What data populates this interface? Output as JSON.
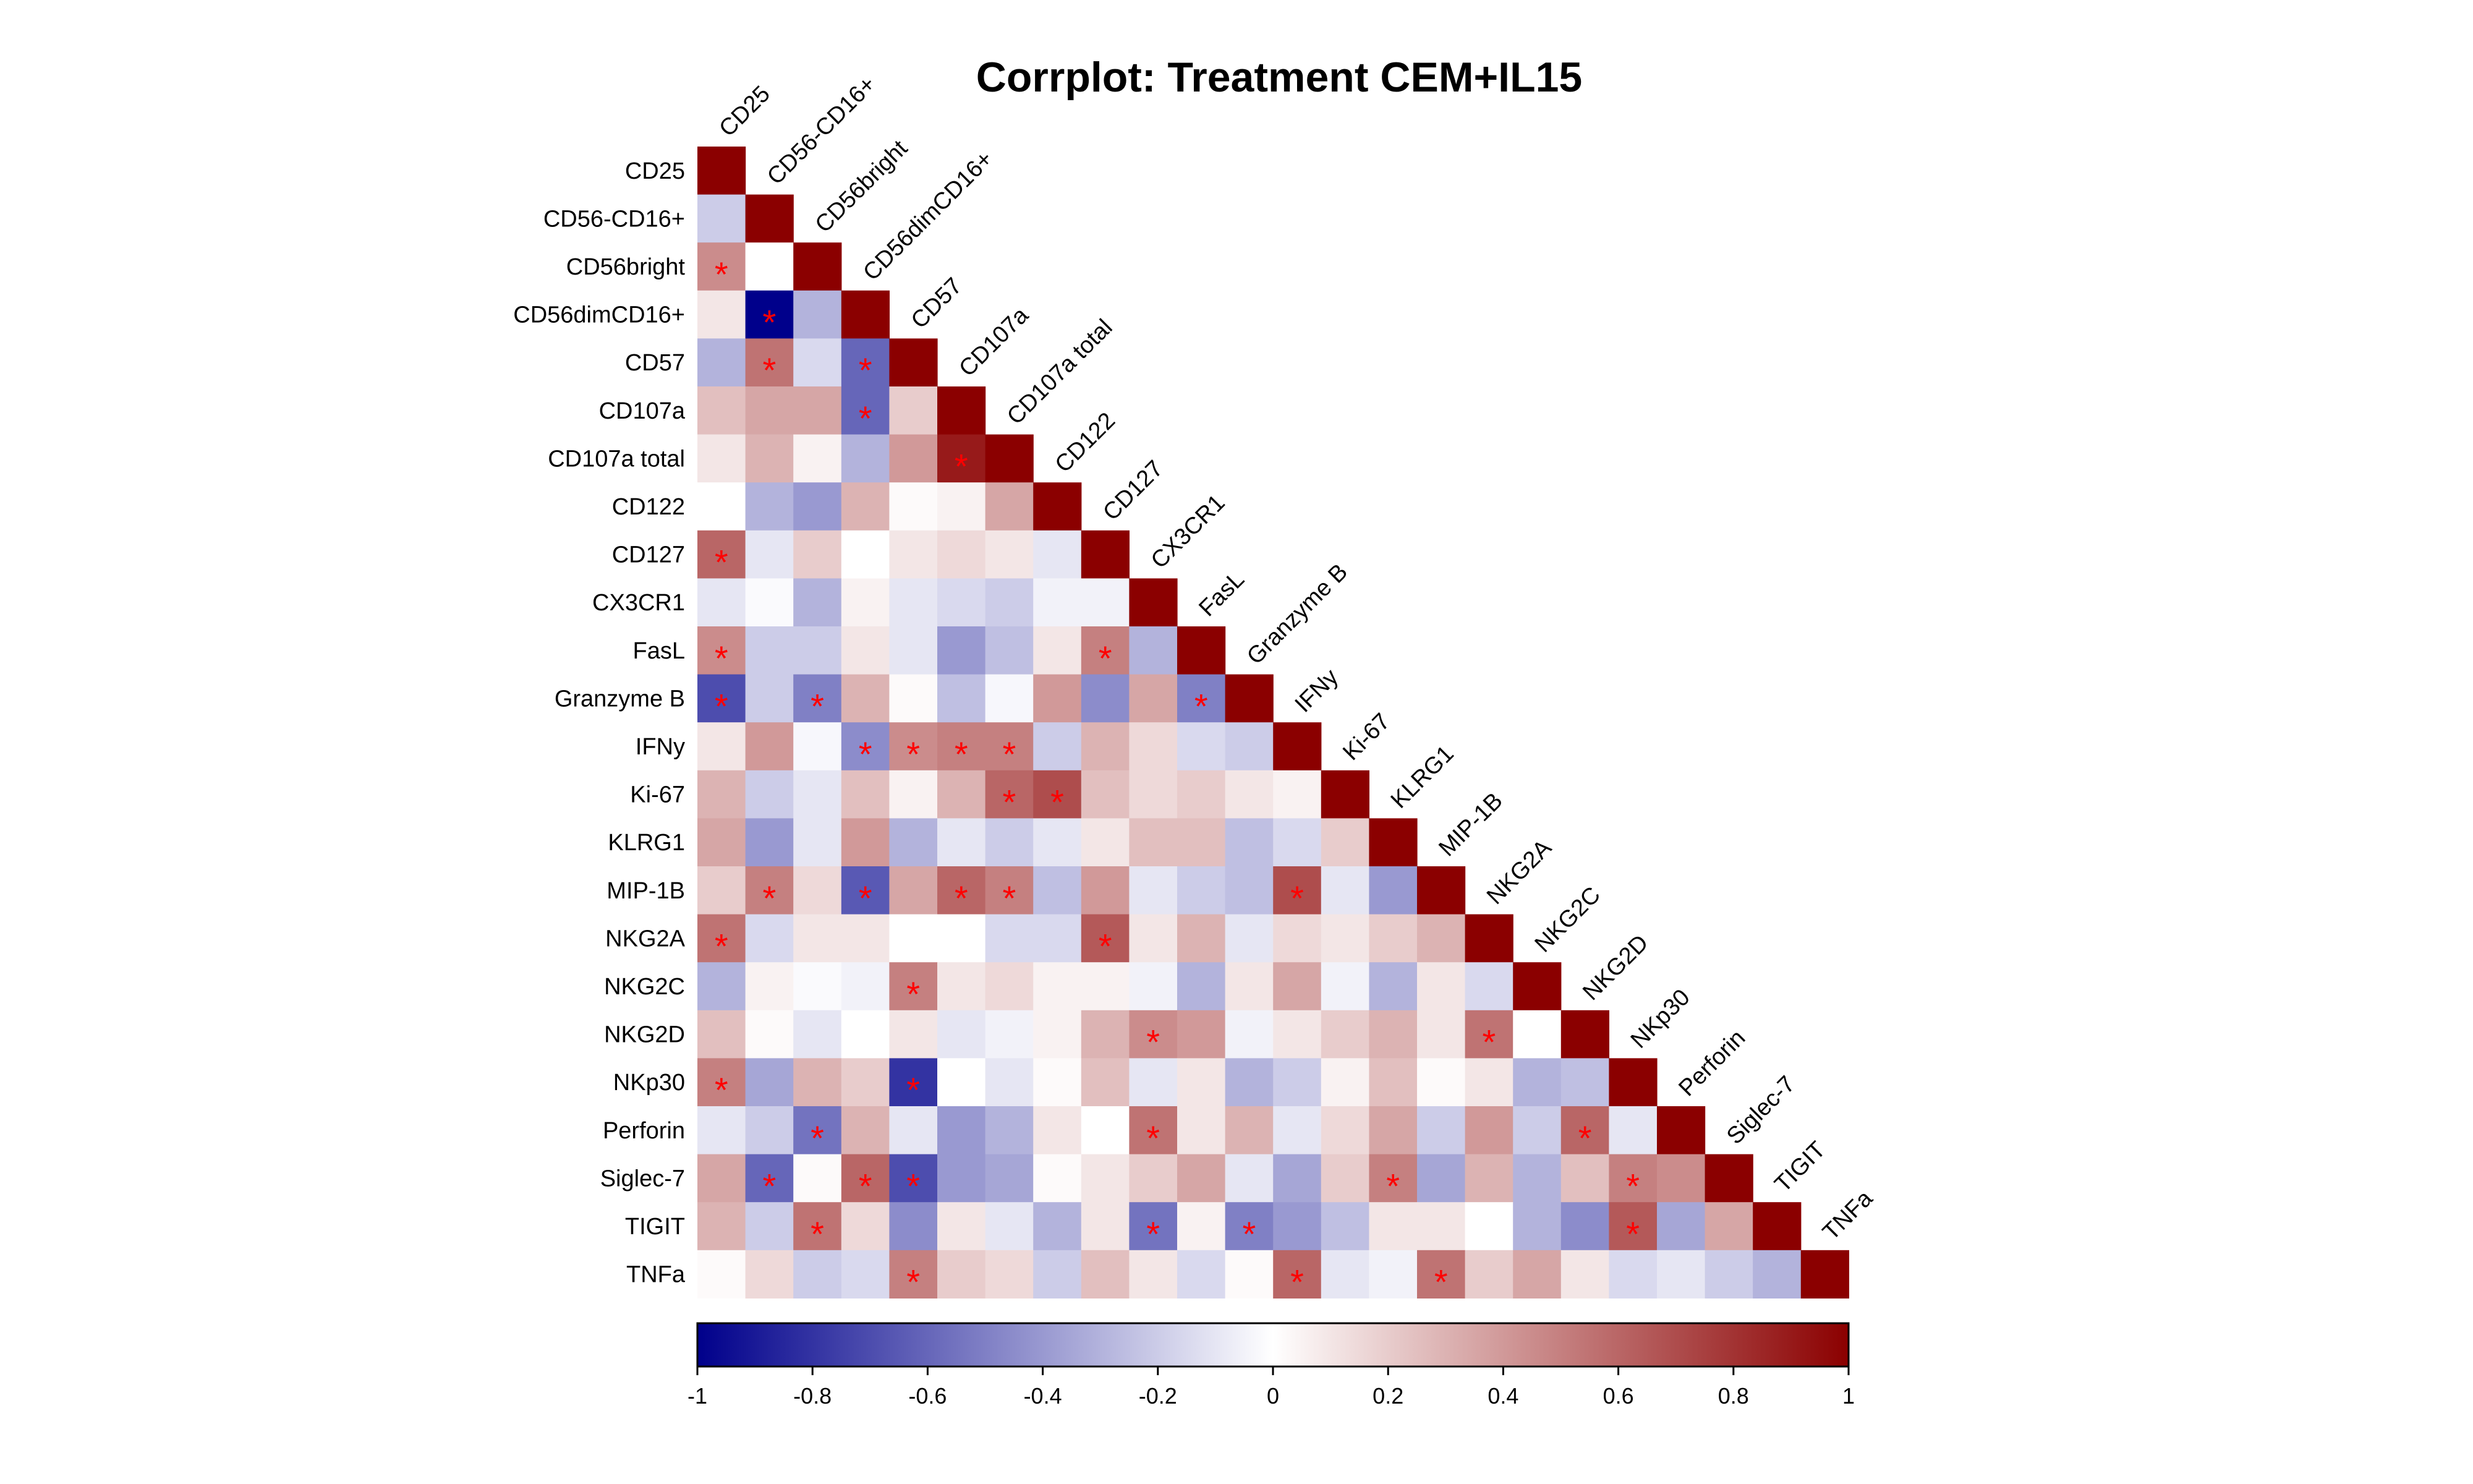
{
  "chart_data": {
    "type": "heatmap",
    "title": "Corrplot: Treatment CEM+IL15",
    "variables": [
      "CD25",
      "CD56-CD16+",
      "CD56bright",
      "CD56dimCD16+",
      "CD57",
      "CD107a",
      "CD107a total",
      "CD122",
      "CD127",
      "CX3CR1",
      "FasL",
      "Granzyme B",
      "IFNy",
      "Ki-67",
      "KLRG1",
      "MIP-1B",
      "NKG2A",
      "NKG2C",
      "NKG2D",
      "NKp30",
      "Perforin",
      "Siglec-7",
      "TIGIT",
      "TNFa"
    ],
    "matrix_shape": "lower-triangle",
    "values": [
      [
        1
      ],
      [
        -0.2,
        1
      ],
      [
        0.45,
        0.0,
        1
      ],
      [
        0.1,
        -1.0,
        -0.3,
        1
      ],
      [
        -0.3,
        0.55,
        -0.15,
        -0.6,
        1
      ],
      [
        0.25,
        0.35,
        0.35,
        -0.6,
        0.2,
        1
      ],
      [
        0.1,
        0.3,
        0.05,
        -0.3,
        0.4,
        0.9,
        1
      ],
      [
        0.0,
        -0.3,
        -0.4,
        0.3,
        0.02,
        0.05,
        0.35,
        1
      ],
      [
        0.6,
        -0.1,
        0.2,
        0.0,
        0.1,
        0.15,
        0.1,
        -0.1,
        1
      ],
      [
        -0.1,
        -0.02,
        -0.3,
        0.05,
        -0.1,
        -0.15,
        -0.2,
        -0.05,
        -0.05,
        1
      ],
      [
        0.45,
        -0.2,
        -0.2,
        0.1,
        -0.1,
        -0.4,
        -0.25,
        0.1,
        0.5,
        -0.3,
        1
      ],
      [
        -0.7,
        -0.2,
        -0.5,
        0.3,
        0.02,
        -0.25,
        -0.03,
        0.4,
        -0.45,
        0.35,
        -0.5,
        1
      ],
      [
        0.1,
        0.4,
        -0.03,
        -0.45,
        0.45,
        0.5,
        0.5,
        -0.2,
        0.3,
        0.15,
        -0.15,
        -0.2,
        1
      ],
      [
        0.3,
        -0.2,
        -0.1,
        0.25,
        0.05,
        0.3,
        0.6,
        0.7,
        0.25,
        0.15,
        0.2,
        0.1,
        0.05,
        1
      ],
      [
        0.35,
        -0.4,
        -0.1,
        0.4,
        -0.3,
        -0.1,
        -0.2,
        -0.1,
        0.1,
        0.25,
        0.25,
        -0.25,
        -0.15,
        0.2,
        1
      ],
      [
        0.2,
        0.5,
        0.15,
        -0.65,
        0.35,
        0.6,
        0.5,
        -0.25,
        0.4,
        -0.1,
        -0.2,
        -0.25,
        0.7,
        -0.1,
        -0.4,
        1
      ],
      [
        0.55,
        -0.15,
        0.1,
        0.1,
        0.0,
        0.0,
        -0.15,
        -0.15,
        0.65,
        0.1,
        0.3,
        -0.1,
        0.15,
        0.1,
        0.2,
        0.3,
        1
      ],
      [
        -0.3,
        0.05,
        -0.02,
        -0.05,
        0.5,
        0.1,
        0.15,
        0.05,
        0.05,
        -0.05,
        -0.3,
        0.1,
        0.35,
        -0.05,
        -0.3,
        0.1,
        -0.15,
        1
      ],
      [
        0.25,
        0.02,
        -0.1,
        0.0,
        0.1,
        -0.1,
        -0.05,
        0.05,
        0.3,
        0.45,
        0.4,
        -0.05,
        0.1,
        0.2,
        0.3,
        0.1,
        0.55,
        0.0,
        1
      ],
      [
        0.5,
        -0.35,
        0.3,
        0.2,
        -0.8,
        0.0,
        -0.1,
        0.02,
        0.25,
        -0.1,
        0.1,
        -0.3,
        -0.2,
        0.05,
        0.25,
        0.02,
        0.1,
        -0.3,
        -0.25,
        1
      ],
      [
        -0.1,
        -0.2,
        -0.55,
        0.3,
        -0.1,
        -0.4,
        -0.3,
        0.1,
        0.0,
        0.55,
        0.1,
        0.3,
        -0.1,
        0.15,
        0.35,
        -0.2,
        0.4,
        -0.2,
        0.6,
        -0.1,
        1
      ],
      [
        0.35,
        -0.6,
        0.02,
        0.6,
        -0.7,
        -0.4,
        -0.35,
        0.02,
        0.1,
        0.2,
        0.35,
        -0.1,
        -0.35,
        0.2,
        0.5,
        -0.35,
        0.3,
        -0.3,
        0.25,
        0.5,
        0.45,
        1
      ],
      [
        0.3,
        -0.2,
        0.55,
        0.15,
        -0.45,
        0.1,
        -0.1,
        -0.3,
        0.1,
        -0.55,
        0.05,
        -0.5,
        -0.4,
        -0.25,
        0.1,
        0.1,
        0.0,
        -0.3,
        -0.45,
        0.65,
        -0.35,
        0.35,
        1
      ],
      [
        0.02,
        0.15,
        -0.2,
        -0.15,
        0.5,
        0.2,
        0.15,
        -0.2,
        0.25,
        0.1,
        -0.15,
        0.02,
        0.6,
        -0.1,
        -0.05,
        0.55,
        0.2,
        0.35,
        0.1,
        -0.15,
        -0.1,
        -0.2,
        -0.3,
        1
      ]
    ],
    "significance": [
      [
        2,
        0
      ],
      [
        3,
        1
      ],
      [
        4,
        1
      ],
      [
        4,
        3
      ],
      [
        5,
        3
      ],
      [
        6,
        5
      ],
      [
        8,
        0
      ],
      [
        10,
        0
      ],
      [
        10,
        8
      ],
      [
        11,
        0
      ],
      [
        11,
        2
      ],
      [
        11,
        10
      ],
      [
        12,
        3
      ],
      [
        12,
        4
      ],
      [
        12,
        5
      ],
      [
        12,
        6
      ],
      [
        13,
        6
      ],
      [
        13,
        7
      ],
      [
        15,
        1
      ],
      [
        15,
        3
      ],
      [
        15,
        5
      ],
      [
        15,
        6
      ],
      [
        15,
        12
      ],
      [
        16,
        0
      ],
      [
        16,
        8
      ],
      [
        17,
        4
      ],
      [
        18,
        9
      ],
      [
        18,
        16
      ],
      [
        19,
        0
      ],
      [
        19,
        4
      ],
      [
        20,
        2
      ],
      [
        20,
        9
      ],
      [
        20,
        18
      ],
      [
        21,
        1
      ],
      [
        21,
        3
      ],
      [
        21,
        4
      ],
      [
        21,
        14
      ],
      [
        21,
        19
      ],
      [
        22,
        2
      ],
      [
        22,
        9
      ],
      [
        22,
        11
      ],
      [
        22,
        19
      ],
      [
        23,
        4
      ],
      [
        23,
        12
      ],
      [
        23,
        15
      ]
    ],
    "color_scale": {
      "min": -1,
      "max": 1,
      "colors": [
        "#00008b",
        "#ffffff",
        "#8b0000"
      ],
      "ticks": [
        "-1",
        "-0.8",
        "-0.6",
        "-0.4",
        "-0.2",
        "0",
        "0.2",
        "0.4",
        "0.6",
        "0.8",
        "1"
      ],
      "significance_mark": "*",
      "significance_color": "#ff0000"
    }
  }
}
